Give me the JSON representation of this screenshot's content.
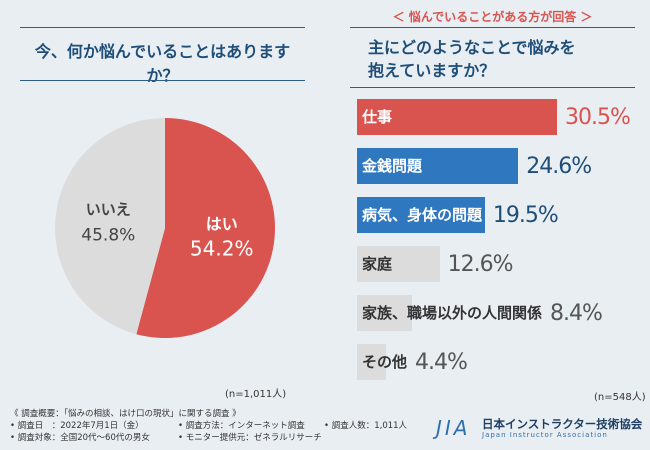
{
  "left": {
    "question": "今、何か悩んでいることはありますか？",
    "n": "(n=1,011人)"
  },
  "right": {
    "subtitle": "＜ 悩んでいることがある方が回答 ＞",
    "question_line1": "主にどのようなことで悩みを",
    "question_line2": "抱えていますか？",
    "n": "(n=548人)"
  },
  "chart_data": [
    {
      "type": "pie",
      "title": "今、何か悩んでいることはありますか？",
      "slices": [
        {
          "label": "はい",
          "value": 54.2,
          "value_text": "54.2%",
          "color": "#d9534f"
        },
        {
          "label": "いいえ",
          "value": 45.8,
          "value_text": "45.8%",
          "color": "#dcdcdc"
        }
      ]
    },
    {
      "type": "bar",
      "title": "主にどのようなことで悩みを抱えていますか？",
      "categories": [
        "仕事",
        "金銭問題",
        "病気、身体の問題",
        "家庭",
        "家族、職場以外の人間関係",
        "その他"
      ],
      "values": [
        30.5,
        24.6,
        19.5,
        12.6,
        8.4,
        4.4
      ],
      "value_texts": [
        "30.5%",
        "24.6%",
        "19.5%",
        "12.6%",
        "8.4%",
        "4.4%"
      ],
      "colors": [
        "#d9534f",
        "#2f78bf",
        "#2f78bf",
        "#dcdcdc",
        "#dcdcdc",
        "#dcdcdc"
      ],
      "label_colors": [
        "#ffffff",
        "#ffffff",
        "#ffffff",
        "#333333",
        "#333333",
        "#333333"
      ],
      "value_colors": [
        "#d9534f",
        "#1f4e79",
        "#1f4e79",
        "#555555",
        "#555555",
        "#555555"
      ]
    }
  ],
  "footer": {
    "heading": "《 調査概要：「悩みの相談、はけ口の現状」に関する調査 》",
    "date": "• 調査日　：2022年7月1日（金）",
    "method": "• 調査方法：インターネット調査",
    "count": "• 調査人数：1,011人",
    "target": "• 調査対象：全国20代〜60代の男女",
    "provider": "• モニター提供元：ゼネラルリサーチ"
  },
  "logo": {
    "mark": "JIA",
    "name": "日本インストラクター技術協会",
    "english": "Japan Instructor Association"
  }
}
